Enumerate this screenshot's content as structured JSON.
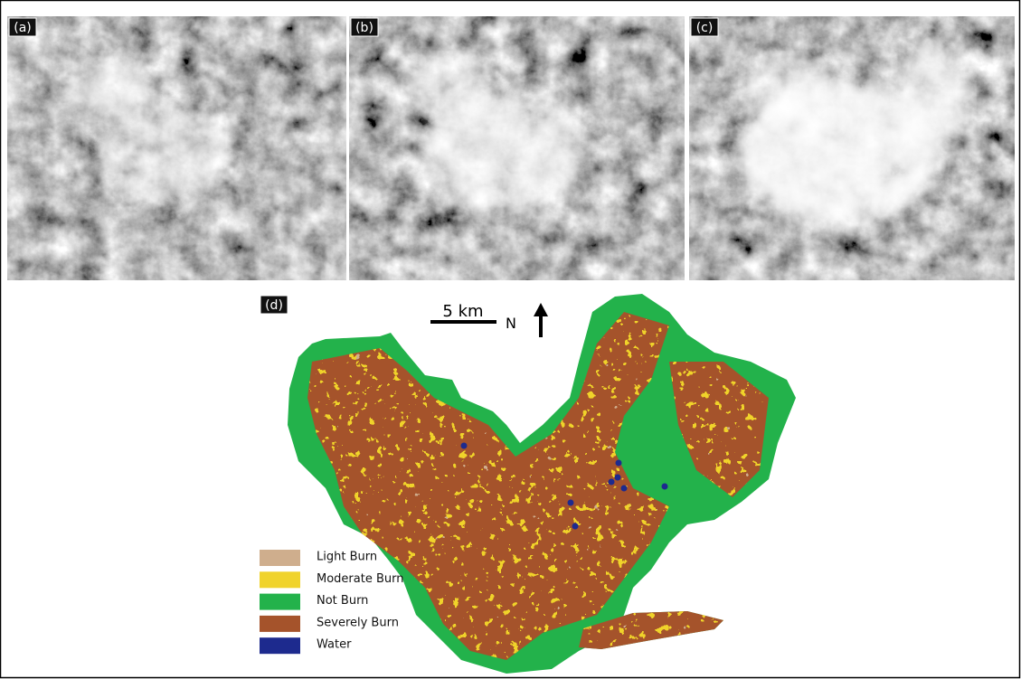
{
  "panels": [
    {
      "label": "(a)"
    },
    {
      "label": "(b)"
    },
    {
      "label": "(c)"
    }
  ],
  "map": {
    "label": "(d)",
    "scale_bar": "5 km",
    "north": "N",
    "legend": [
      {
        "label": "Light Burn",
        "color": "#cfae8d"
      },
      {
        "label": "Moderate Burn",
        "color": "#f0d32c"
      },
      {
        "label": "Not Burn",
        "color": "#23b24b"
      },
      {
        "label": "Severely Burn",
        "color": "#a5532b"
      },
      {
        "label": "Water",
        "color": "#1d2a8e"
      }
    ]
  }
}
